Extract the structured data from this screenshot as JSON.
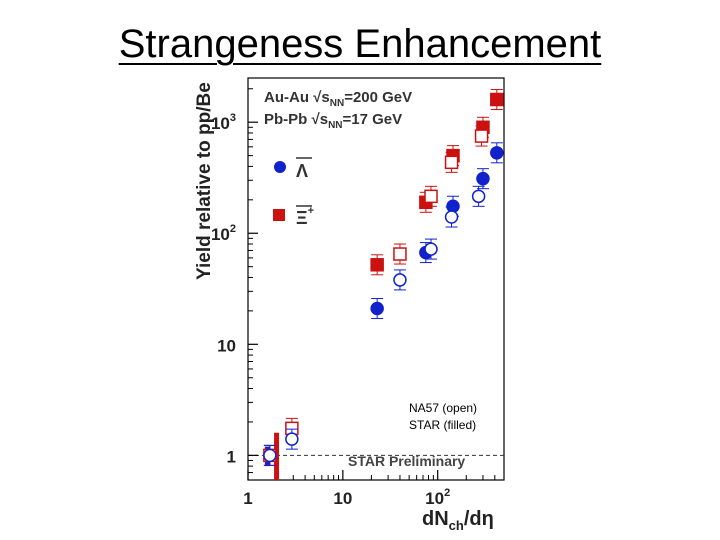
{
  "slide": {
    "title": "Strangeness Enhancement"
  },
  "chart_data": {
    "type": "scatter",
    "title": "",
    "xlabel": "dN_ch/dη",
    "xlabel_main": "dN",
    "xlabel_sub": "ch",
    "xlabel_tail": "/dη",
    "ylabel": "Yield relative to pp/Be",
    "x_scale": "log",
    "y_scale": "log",
    "xlim": [
      1,
      500
    ],
    "ylim": [
      0.6,
      2500
    ],
    "x_ticks": [
      {
        "value": 1,
        "label": "1"
      },
      {
        "value": 10,
        "label": "10"
      },
      {
        "value": 100,
        "label": "10",
        "sup": "2"
      }
    ],
    "y_ticks": [
      {
        "value": 1,
        "label": "1"
      },
      {
        "value": 10,
        "label": "10"
      },
      {
        "value": 100,
        "label": "10",
        "sup": "2"
      },
      {
        "value": 1000,
        "label": "10",
        "sup": "3"
      }
    ],
    "reference_line": 1,
    "annotations": {
      "energy_auau": "Au-Au √s",
      "energy_auau_sub": "NN",
      "energy_auau_val": "=200 GeV",
      "energy_pbpb": "Pb-Pb √s",
      "energy_pbpb_sub": "NN",
      "energy_pbpb_val": "=17   GeV",
      "lambda_label": "Λ",
      "xi_label": "Ξ",
      "xi_sup": "+",
      "open_filled_line1": "NA57 (open)",
      "open_filled_line2": "STAR (filled)",
      "preliminary": "STAR Preliminary"
    },
    "series": [
      {
        "marker": "filled-square",
        "color": "#cc1111",
        "points": [
          {
            "x": 23,
            "y": 52
          },
          {
            "x": 75,
            "y": 190
          },
          {
            "x": 145,
            "y": 500
          },
          {
            "x": 300,
            "y": 900
          },
          {
            "x": 420,
            "y": 1600
          }
        ]
      },
      {
        "marker": "filled-circle",
        "color": "#1122cc",
        "points": [
          {
            "x": 23,
            "y": 21
          },
          {
            "x": 75,
            "y": 67
          },
          {
            "x": 145,
            "y": 175
          },
          {
            "x": 300,
            "y": 310
          },
          {
            "x": 420,
            "y": 530
          }
        ]
      },
      {
        "marker": "open-square",
        "color": "#cc1111",
        "points": [
          {
            "x": 1.7,
            "y": 1.0
          },
          {
            "x": 2.9,
            "y": 1.75
          },
          {
            "x": 40,
            "y": 65
          },
          {
            "x": 85,
            "y": 215
          },
          {
            "x": 140,
            "y": 435
          },
          {
            "x": 290,
            "y": 750
          }
        ]
      },
      {
        "marker": "open-circle",
        "color": "#1122cc",
        "points": [
          {
            "x": 1.7,
            "y": 1.0
          },
          {
            "x": 2.9,
            "y": 1.4
          },
          {
            "x": 40,
            "y": 38
          },
          {
            "x": 85,
            "y": 72
          },
          {
            "x": 140,
            "y": 140
          },
          {
            "x": 270,
            "y": 215
          }
        ]
      }
    ],
    "normalization_bars": [
      {
        "x": 1.6,
        "ylow": 0.8,
        "yhigh": 1.2,
        "color": "#1122cc"
      },
      {
        "x": 2.0,
        "ylow": 0.6,
        "yhigh": 1.6,
        "color": "#cc1111"
      }
    ]
  }
}
